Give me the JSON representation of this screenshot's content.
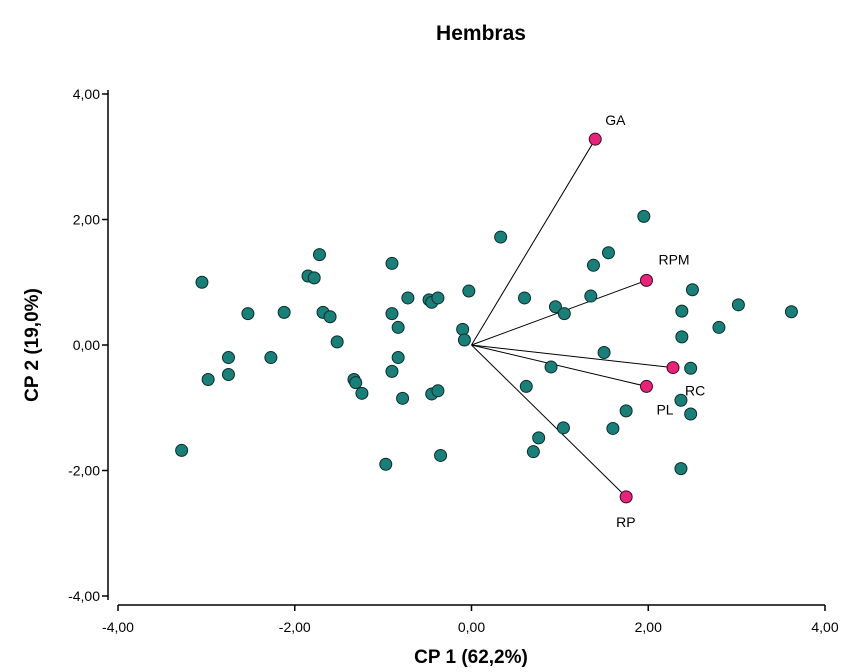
{
  "chart_data": {
    "type": "scatter",
    "title": "Hembras",
    "xlabel": "CP 1 (62,2%)",
    "ylabel": "CP 2 (19,0%)",
    "xlim": [
      -4,
      4
    ],
    "ylim": [
      -4,
      4
    ],
    "x_ticks": [
      "-4,00",
      "-2,00",
      "0,00",
      "2,00",
      "4,00"
    ],
    "y_ticks": [
      "4,00",
      "2,00",
      "0,00",
      "-2,00",
      "-4,00"
    ],
    "x_tick_values": [
      -4,
      -2,
      0,
      2,
      4
    ],
    "y_tick_values": [
      4,
      2,
      0,
      -2,
      -4
    ],
    "grid": false,
    "colors": {
      "observations": "#1a7f78",
      "variables": "#e8247a",
      "vectors": "#000000"
    },
    "observations": [
      [
        -3.28,
        -1.68
      ],
      [
        -3.05,
        1.0
      ],
      [
        -2.98,
        -0.55
      ],
      [
        -2.75,
        -0.2
      ],
      [
        -2.75,
        -0.47
      ],
      [
        -2.53,
        0.5
      ],
      [
        -2.27,
        -0.2
      ],
      [
        -2.12,
        0.52
      ],
      [
        -1.85,
        1.1
      ],
      [
        -1.78,
        1.07
      ],
      [
        -1.72,
        1.44
      ],
      [
        -1.68,
        0.52
      ],
      [
        -1.6,
        0.45
      ],
      [
        -1.52,
        0.05
      ],
      [
        -1.33,
        -0.55
      ],
      [
        -1.31,
        -0.6
      ],
      [
        -1.24,
        -0.77
      ],
      [
        -0.97,
        -1.9
      ],
      [
        -0.9,
        1.3
      ],
      [
        -0.9,
        0.5
      ],
      [
        -0.9,
        -0.42
      ],
      [
        -0.83,
        0.28
      ],
      [
        -0.83,
        -0.2
      ],
      [
        -0.78,
        -0.85
      ],
      [
        -0.72,
        0.75
      ],
      [
        -0.48,
        0.72
      ],
      [
        -0.45,
        0.68
      ],
      [
        -0.45,
        -0.78
      ],
      [
        -0.38,
        0.75
      ],
      [
        -0.38,
        -0.73
      ],
      [
        -0.35,
        -1.76
      ],
      [
        -0.1,
        0.25
      ],
      [
        -0.08,
        0.08
      ],
      [
        -0.03,
        0.86
      ],
      [
        0.33,
        1.72
      ],
      [
        0.6,
        0.75
      ],
      [
        0.62,
        -0.66
      ],
      [
        0.7,
        -1.7
      ],
      [
        0.76,
        -1.48
      ],
      [
        0.9,
        -0.35
      ],
      [
        0.95,
        0.61
      ],
      [
        1.04,
        -1.32
      ],
      [
        1.05,
        0.5
      ],
      [
        1.35,
        0.78
      ],
      [
        1.38,
        1.27
      ],
      [
        1.5,
        -0.12
      ],
      [
        1.55,
        1.47
      ],
      [
        1.6,
        -1.33
      ],
      [
        1.95,
        2.05
      ],
      [
        1.75,
        -1.05
      ],
      [
        2.37,
        -0.88
      ],
      [
        2.37,
        -1.97
      ],
      [
        2.38,
        0.13
      ],
      [
        2.38,
        0.54
      ],
      [
        2.48,
        -0.37
      ],
      [
        2.48,
        -1.1
      ],
      [
        2.5,
        0.88
      ],
      [
        2.8,
        0.28
      ],
      [
        3.02,
        0.64
      ],
      [
        3.62,
        0.53
      ]
    ],
    "variables": [
      {
        "name": "GA",
        "x": 1.4,
        "y": 3.28
      },
      {
        "name": "RPM",
        "x": 1.98,
        "y": 1.03
      },
      {
        "name": "RC",
        "x": 2.28,
        "y": -0.36
      },
      {
        "name": "PL",
        "x": 1.98,
        "y": -0.66
      },
      {
        "name": "RP",
        "x": 1.75,
        "y": -2.42
      }
    ]
  }
}
